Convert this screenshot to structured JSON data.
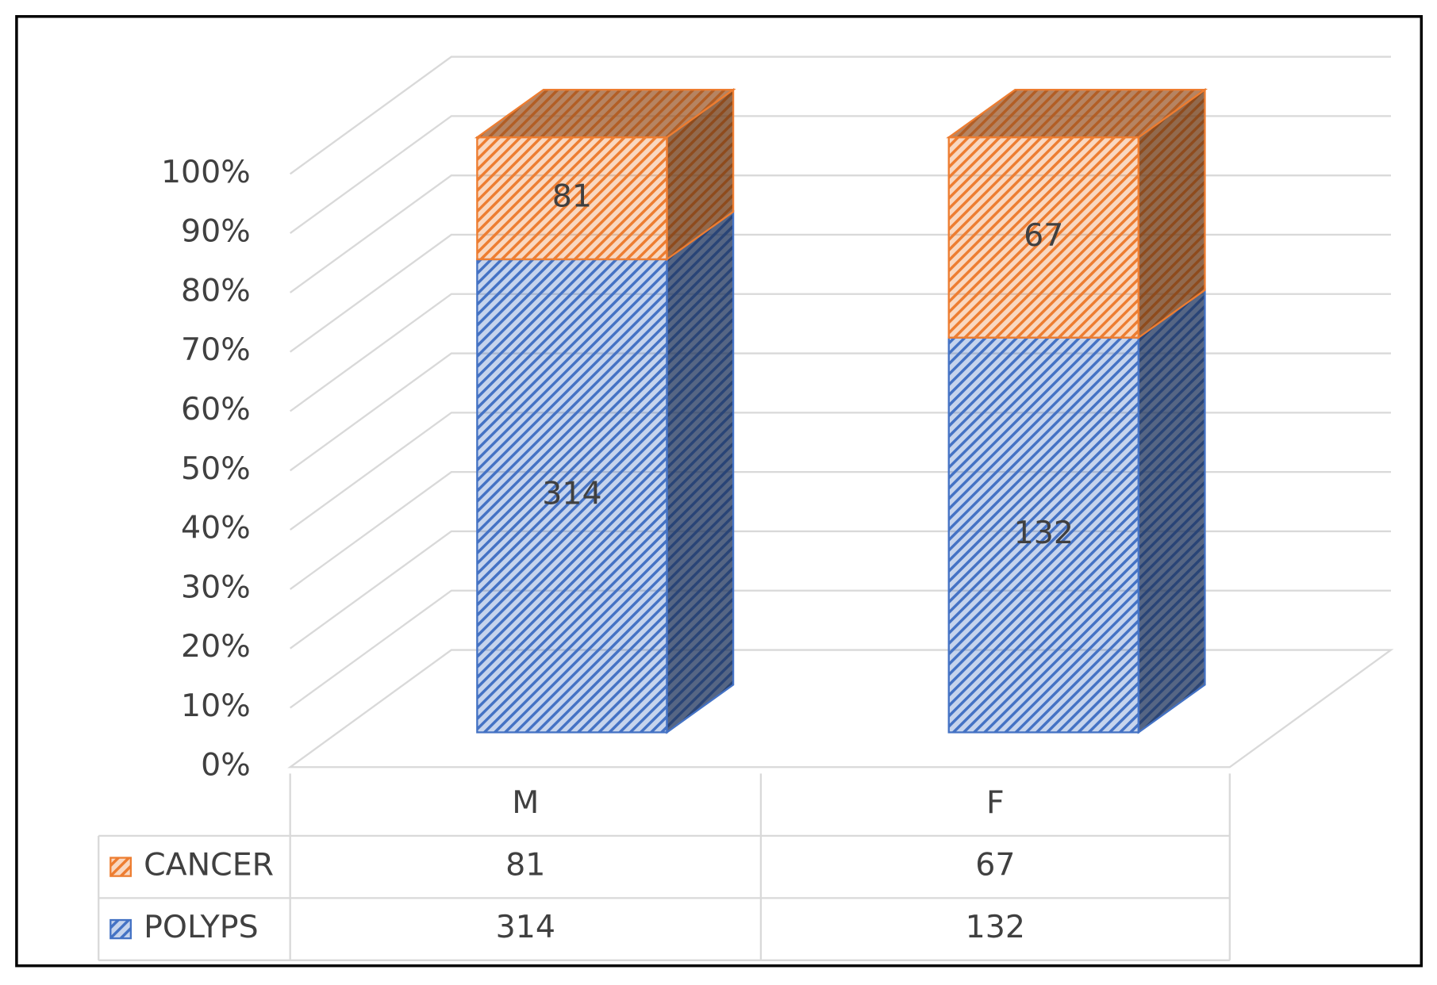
{
  "chart_data": {
    "type": "bar",
    "stacking": "percent",
    "categories": [
      "M",
      "F"
    ],
    "series": [
      {
        "name": "POLYPS",
        "color": "#4472c4",
        "values": [
          314,
          132
        ]
      },
      {
        "name": "CANCER",
        "color": "#ed7d31",
        "values": [
          81,
          67
        ]
      }
    ],
    "ylim": [
      0,
      100
    ],
    "yticks": [
      {
        "value": 0,
        "label": "0%"
      },
      {
        "value": 10,
        "label": "10%"
      },
      {
        "value": 20,
        "label": "20%"
      },
      {
        "value": 30,
        "label": "30%"
      },
      {
        "value": 40,
        "label": "40%"
      },
      {
        "value": 50,
        "label": "50%"
      },
      {
        "value": 60,
        "label": "60%"
      },
      {
        "value": 70,
        "label": "70%"
      },
      {
        "value": 80,
        "label": "80%"
      },
      {
        "value": 90,
        "label": "90%"
      },
      {
        "value": 100,
        "label": "100%"
      }
    ],
    "grid": true,
    "data_table": true
  }
}
